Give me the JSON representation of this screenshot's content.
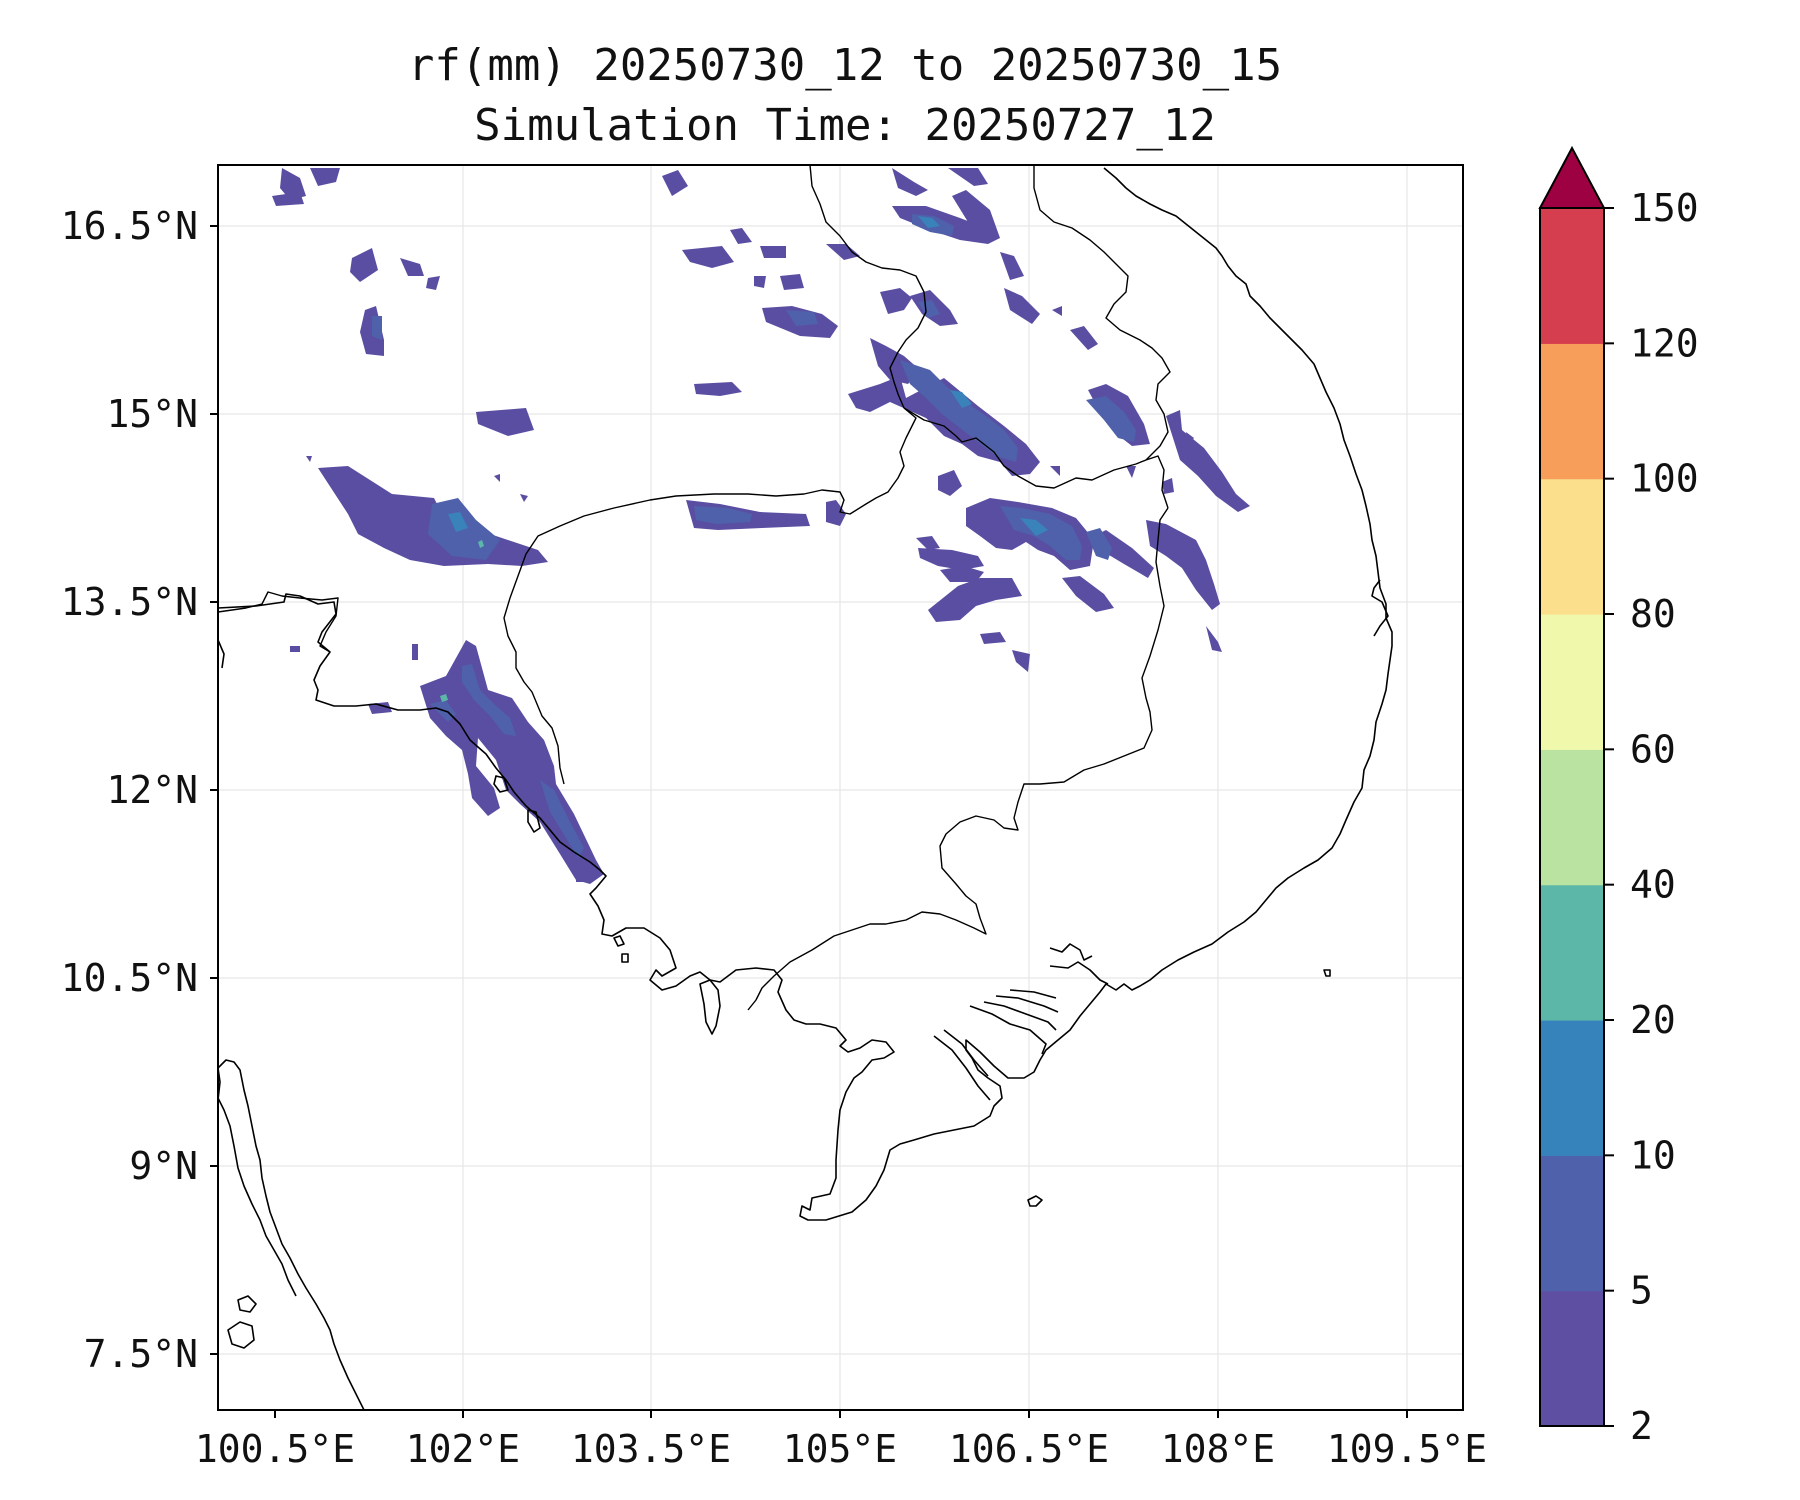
{
  "title": {
    "line1": "rf(mm) 20250730_12 to 20250730_15",
    "line2": "Simulation Time: 20250727_12"
  },
  "axes": {
    "x_ticks": [
      "100.5°E",
      "102°E",
      "103.5°E",
      "105°E",
      "106.5°E",
      "108°E",
      "109.5°E"
    ],
    "y_ticks": [
      "16.5°N",
      "15°N",
      "13.5°N",
      "12°N",
      "10.5°N",
      "9°N",
      "7.5°N"
    ],
    "grid": true
  },
  "colorbar": {
    "levels": [
      "2",
      "5",
      "10",
      "20",
      "40",
      "60",
      "80",
      "100",
      "120",
      "150"
    ],
    "colors": [
      "#5e4fa2",
      "#4f61aa",
      "#3682ba",
      "#5cb7a9",
      "#bae2a1",
      "#f0f8ac",
      "#fbdf8c",
      "#f89e5b",
      "#d53e4f",
      "#9e0142"
    ],
    "extend": "max"
  }
}
